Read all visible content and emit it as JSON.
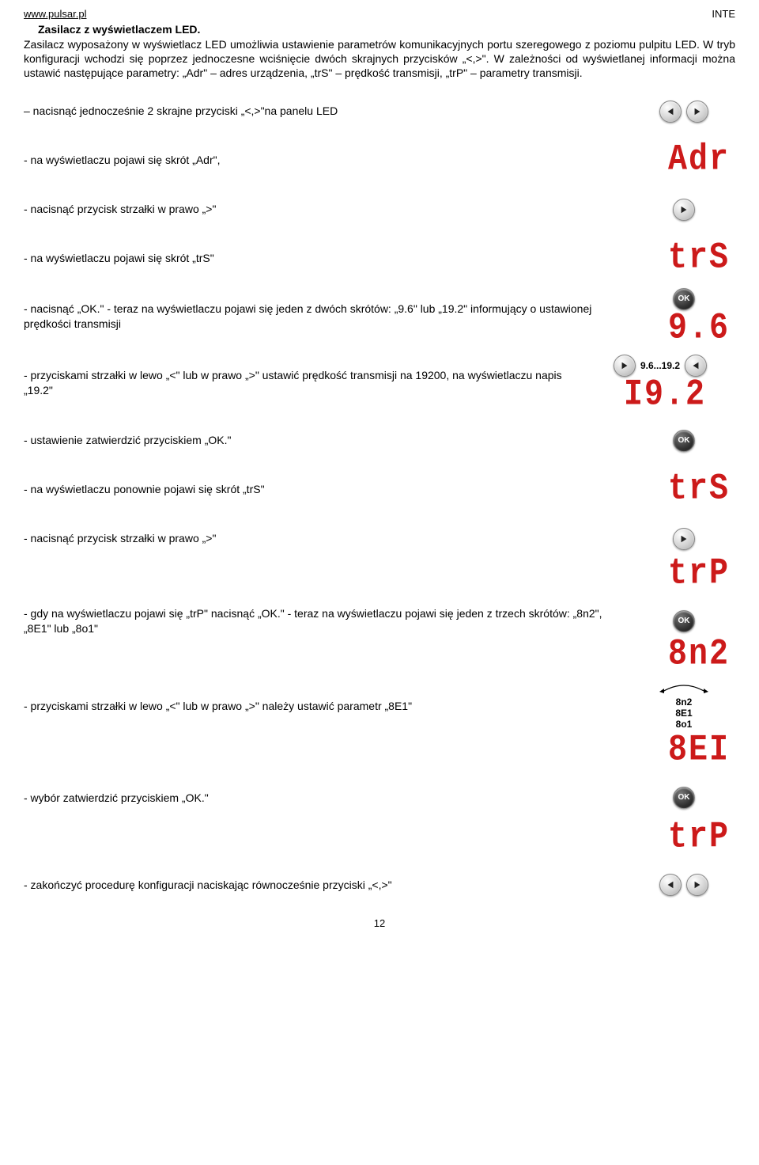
{
  "header": {
    "url": "www.pulsar.pl",
    "right": "INTE"
  },
  "title": "Zasilacz z wyświetlaczem LED.",
  "intro": "Zasilacz wyposażony w wyświetlacz LED umożliwia ustawienie parametrów komunikacyjnych portu szeregowego z poziomu pulpitu LED. W tryb konfiguracji wchodzi się poprzez jednoczesne wciśnięcie dwóch skrajnych przycisków „<,>\". W zależności od wyświetlanej informacji można ustawić następujące parametry: „Adr\" – adres urządzenia, „trS\" – prędkość transmisji, „trP\" – parametry transmisji.",
  "steps": [
    {
      "text": "– nacisnąć jednocześnie 2 skrajne przyciski „<,>\"na panelu LED",
      "visual": "arrows-lr"
    },
    {
      "text": "- na wyświetlaczu pojawi się skrót „Adr\",",
      "visual": "led",
      "led": "Adr"
    },
    {
      "text": "- nacisnąć przycisk strzałki w prawo „>\"",
      "visual": "arrow-r"
    },
    {
      "text": "- na wyświetlaczu pojawi się skrót „trS\"",
      "visual": "led",
      "led": "trS"
    },
    {
      "text": "- nacisnąć „OK.\"\n- teraz na wyświetlaczu pojawi się jeden z dwóch skrótów: „9.6\" lub „19.2\" informujący o ustawionej prędkości transmisji",
      "visual": "ok-then-led",
      "led": "9.6"
    },
    {
      "text": "- przyciskami strzałki w lewo „<\" lub w prawo „>\" ustawić prędkość transmisji na 19200, na wyświetlaczu napis „19.2\"",
      "visual": "range-led",
      "caption": "9.6...19.2",
      "led": "19.2"
    },
    {
      "text": "- ustawienie zatwierdzić przyciskiem „OK.\"",
      "visual": "ok"
    },
    {
      "text": "- na wyświetlaczu ponownie pojawi się skrót „trS\"",
      "visual": "led",
      "led": "trS"
    },
    {
      "text": "- nacisnąć przycisk strzałki w prawo „>\"",
      "visual": "arrow-r-spaced"
    },
    {
      "text": "",
      "visual": "led-only",
      "led": "trP"
    },
    {
      "text": "- gdy na wyświetlaczu pojawi się „trP\" nacisnąć „OK.\"\n- teraz na wyświetlaczu pojawi się jeden z trzech skrótów: „8n2\", „8E1\" lub „8o1\"",
      "visual": "ok-top"
    },
    {
      "text": "",
      "visual": "led-only",
      "led": "8n2"
    },
    {
      "text": "- przyciskami strzałki w lewo „<\" lub w prawo „>\" należy ustawić parametr „8E1\"",
      "visual": "param-cycle",
      "params": [
        "8n2",
        "8E1",
        "8o1"
      ]
    },
    {
      "text": "",
      "visual": "led-only",
      "led": "8E1"
    },
    {
      "text": "- wybór zatwierdzić przyciskiem „OK.\"",
      "visual": "ok"
    },
    {
      "text": "",
      "visual": "led-only",
      "led": "trP"
    },
    {
      "text": "- zakończyć procedurę konfiguracji naciskając równocześnie przyciski „<,>\"",
      "visual": "arrows-lr"
    }
  ],
  "page_number": "12",
  "colors": {
    "led": "#cc1a1a",
    "button_light": "#d0d0d0",
    "button_dark": "#333333",
    "text": "#000000",
    "bg": "#ffffff"
  },
  "led_style": {
    "fontsize": 40,
    "letter_spacing": 2
  }
}
